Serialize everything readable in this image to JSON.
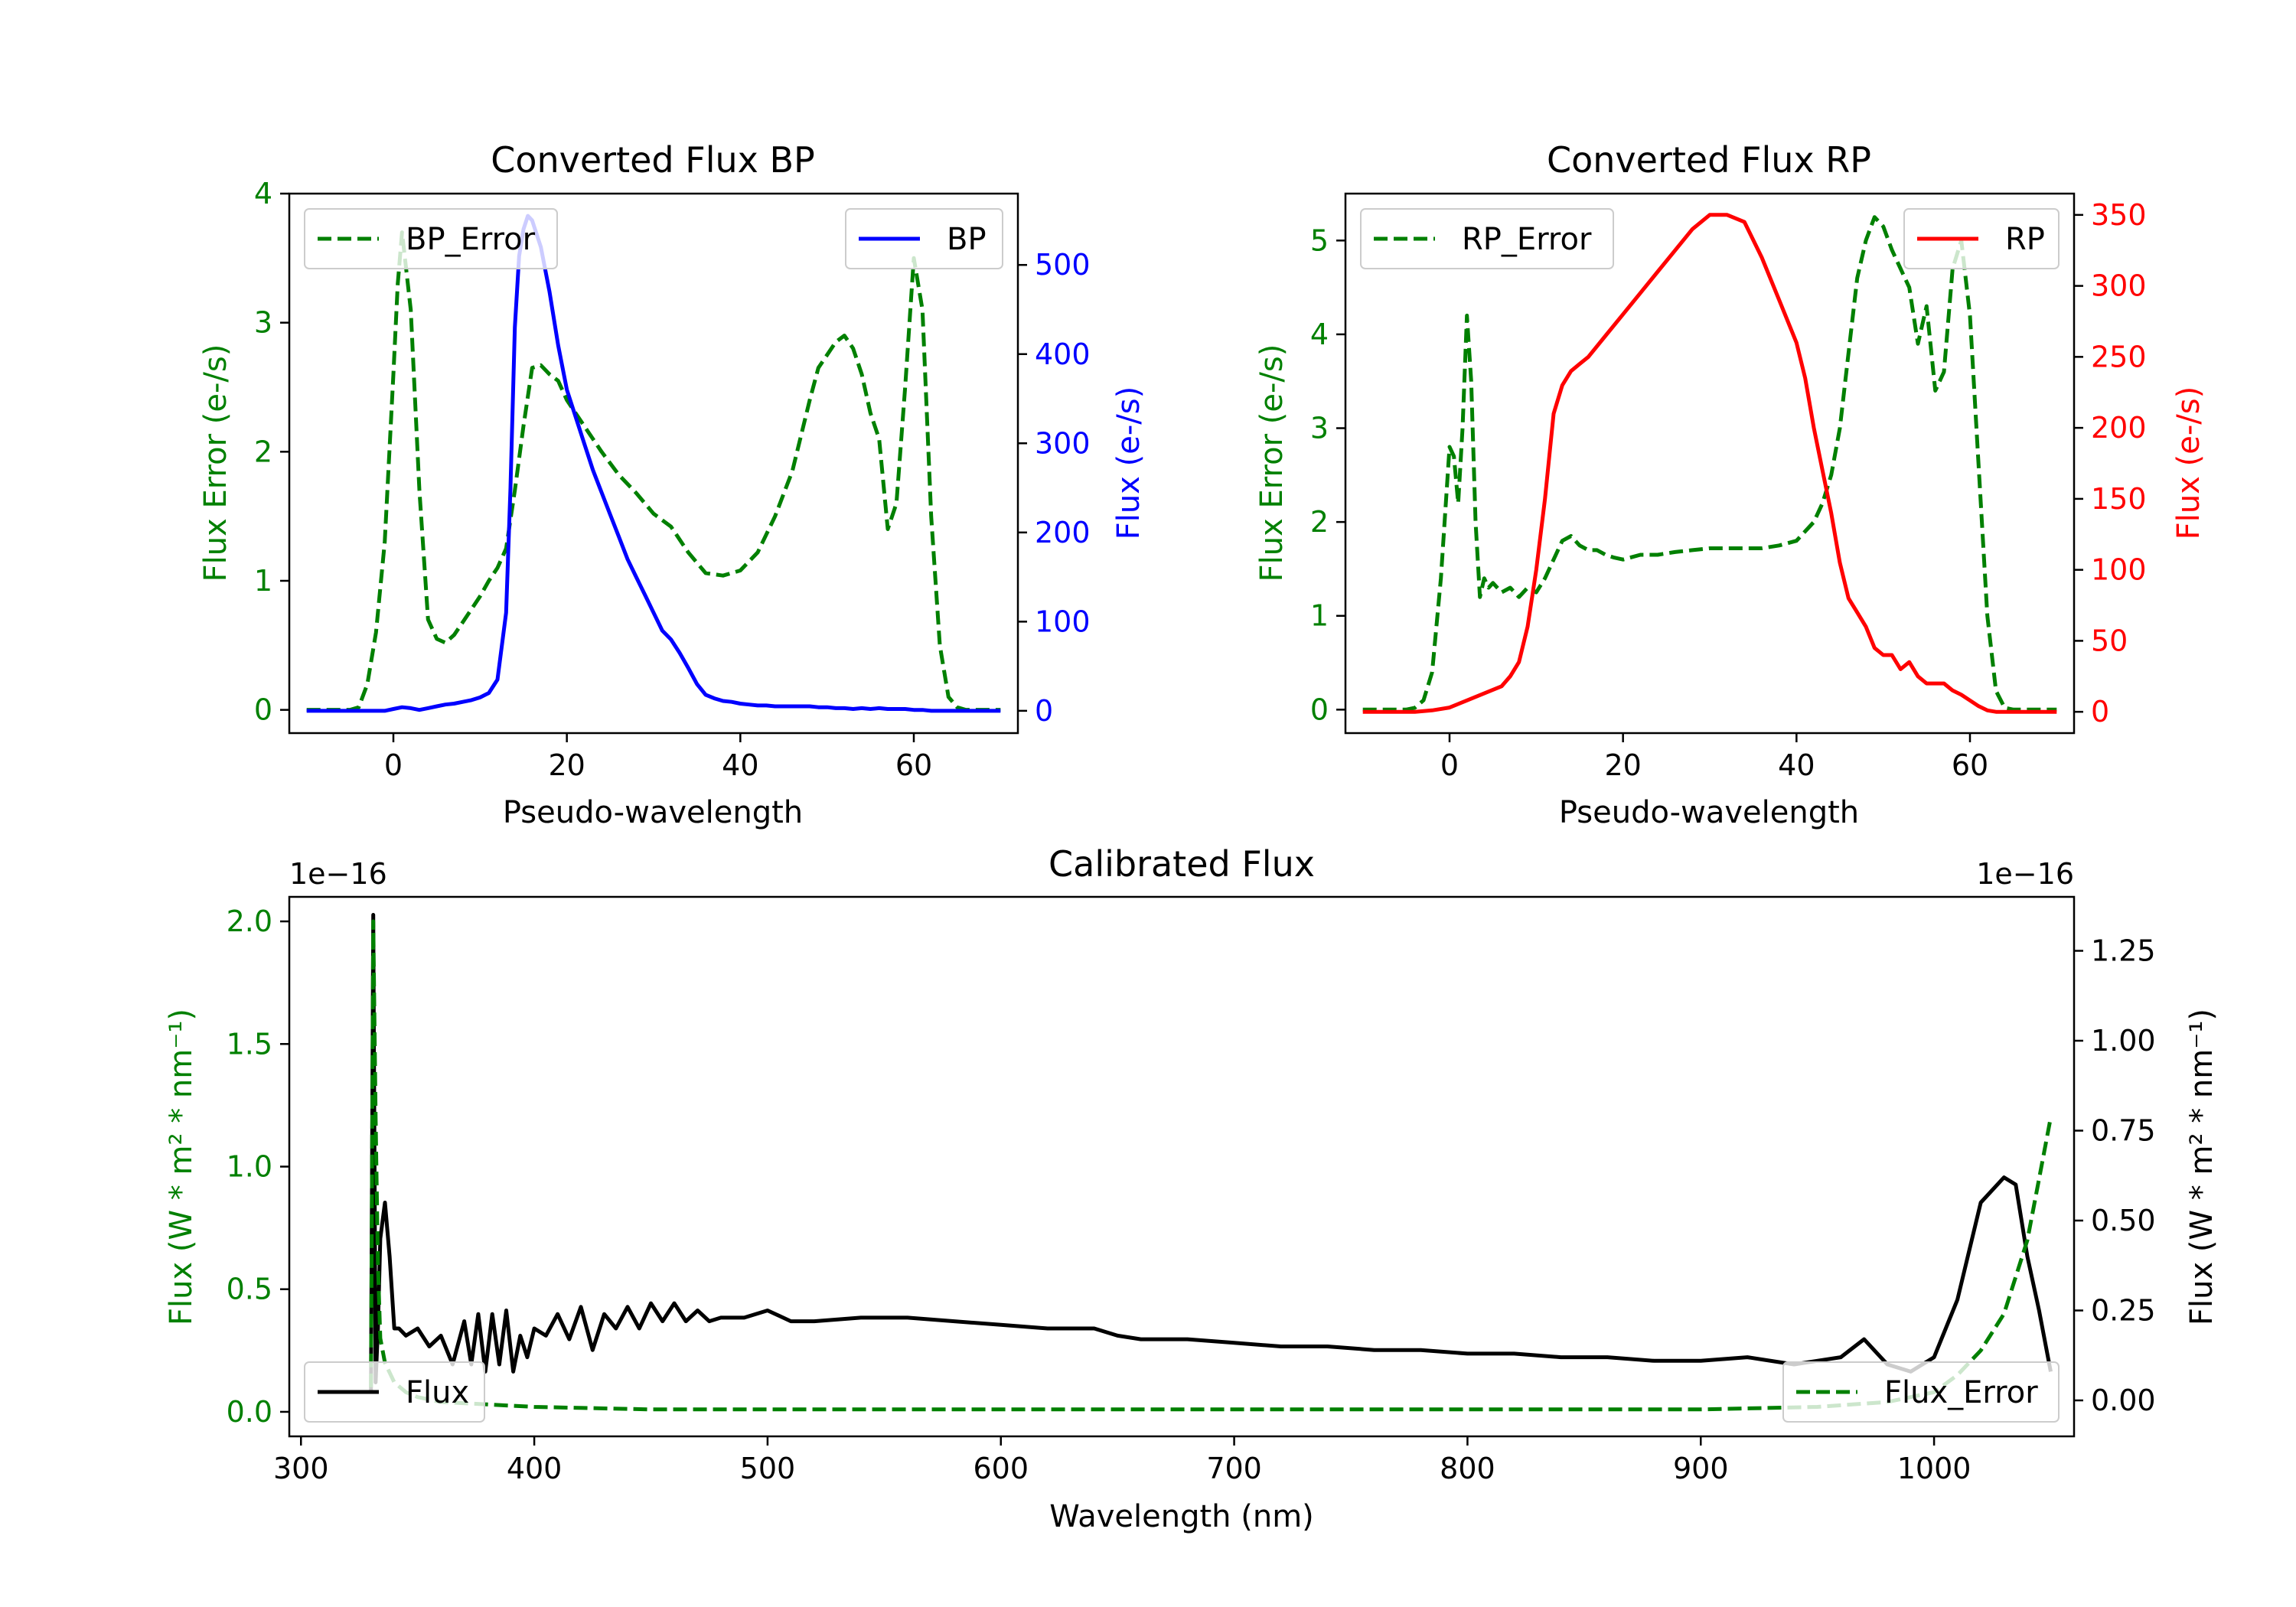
{
  "colors": {
    "error": "#008000",
    "bp": "#0000ff",
    "rp": "#ff0000",
    "flux": "#000000",
    "axis": "#000000"
  },
  "chart_data": [
    {
      "id": "bp",
      "type": "line",
      "title": "Converted Flux BP",
      "xlabel": "Pseudo-wavelength",
      "ylabel_left": "Flux Error (e-/s)",
      "ylabel_right": "Flux (e-/s)",
      "xlim": [
        -12,
        72
      ],
      "ylim_left": [
        -0.18,
        4.0
      ],
      "ylim_right": [
        -25,
        580
      ],
      "xticks": [
        0,
        20,
        40,
        60
      ],
      "yticks_left": [
        0,
        1,
        2,
        3,
        4
      ],
      "yticks_right": [
        0,
        100,
        200,
        300,
        400,
        500
      ],
      "legend_left": {
        "label": "BP_Error",
        "placement": "upper left"
      },
      "legend_right": {
        "label": "BP",
        "placement": "upper right"
      },
      "series": [
        {
          "name": "BP_Error",
          "axis": "left",
          "color": "#008000",
          "style": "dashed",
          "x": [
            -10,
            -5,
            -4,
            -3,
            -2,
            -1,
            0,
            0.5,
            1,
            2,
            3,
            4,
            5,
            6,
            7,
            8,
            9,
            10,
            11,
            12,
            13,
            14,
            15,
            16,
            17,
            18,
            19,
            20,
            22,
            24,
            26,
            28,
            30,
            32,
            34,
            36,
            38,
            40,
            42,
            44,
            46,
            48,
            49,
            50,
            51,
            52,
            53,
            54,
            55,
            56,
            57,
            58,
            59,
            60,
            61,
            62,
            63,
            64,
            65,
            66,
            70
          ],
          "y": [
            0,
            0,
            0.02,
            0.2,
            0.6,
            1.3,
            2.6,
            3.3,
            3.7,
            3.1,
            1.7,
            0.7,
            0.55,
            0.52,
            0.58,
            0.68,
            0.78,
            0.88,
            1.0,
            1.1,
            1.25,
            1.7,
            2.2,
            2.65,
            2.67,
            2.6,
            2.55,
            2.4,
            2.2,
            2.0,
            1.82,
            1.68,
            1.52,
            1.42,
            1.22,
            1.06,
            1.04,
            1.08,
            1.22,
            1.5,
            1.85,
            2.4,
            2.65,
            2.75,
            2.85,
            2.9,
            2.8,
            2.6,
            2.3,
            2.1,
            1.4,
            1.6,
            2.5,
            3.5,
            3.1,
            1.5,
            0.5,
            0.1,
            0.02,
            0,
            0
          ]
        },
        {
          "name": "BP",
          "axis": "right",
          "color": "#0000ff",
          "style": "solid",
          "x": [
            -10,
            -5,
            -4,
            -3,
            -2,
            -1,
            0,
            1,
            2,
            3,
            4,
            5,
            6,
            7,
            8,
            9,
            10,
            11,
            12,
            13,
            13.5,
            14,
            14.5,
            15,
            15.5,
            16,
            17,
            18,
            19,
            20,
            21,
            22,
            23,
            24,
            25,
            26,
            27,
            28,
            29,
            30,
            31,
            32,
            33,
            34,
            35,
            36,
            37,
            38,
            39,
            40,
            41,
            42,
            43,
            44,
            45,
            46,
            47,
            48,
            49,
            50,
            51,
            52,
            53,
            54,
            55,
            56,
            57,
            58,
            59,
            60,
            61,
            62,
            63,
            64,
            65,
            66,
            70
          ],
          "y": [
            0,
            0,
            0,
            0,
            0,
            0,
            2,
            4,
            3,
            1,
            3,
            5,
            7,
            8,
            10,
            12,
            15,
            20,
            35,
            110,
            250,
            430,
            510,
            540,
            555,
            550,
            520,
            470,
            410,
            360,
            330,
            300,
            270,
            245,
            220,
            195,
            170,
            150,
            130,
            110,
            90,
            80,
            65,
            48,
            30,
            18,
            14,
            11,
            10,
            8,
            7,
            6,
            6,
            5,
            5,
            5,
            5,
            5,
            4,
            4,
            3,
            3,
            2,
            3,
            2,
            3,
            2,
            2,
            2,
            1,
            1,
            0,
            0,
            0,
            0,
            0,
            0
          ]
        }
      ]
    },
    {
      "id": "rp",
      "type": "line",
      "title": "Converted Flux RP",
      "xlabel": "Pseudo-wavelength",
      "ylabel_left": "Flux Error (e-/s)",
      "ylabel_right": "Flux (e-/s)",
      "xlim": [
        -12,
        72
      ],
      "ylim_left": [
        -0.25,
        5.5
      ],
      "ylim_right": [
        -15,
        365
      ],
      "xticks": [
        0,
        20,
        40,
        60
      ],
      "yticks_left": [
        0,
        1,
        2,
        3,
        4,
        5
      ],
      "yticks_right": [
        0,
        50,
        100,
        150,
        200,
        250,
        300,
        350
      ],
      "legend_left": {
        "label": "RP_Error",
        "placement": "upper left"
      },
      "legend_right": {
        "label": "RP",
        "placement": "upper right"
      },
      "series": [
        {
          "name": "RP_Error",
          "axis": "left",
          "color": "#008000",
          "style": "dashed",
          "x": [
            -10,
            -5,
            -4,
            -3,
            -2,
            -1,
            0,
            0.5,
            1,
            1.5,
            2,
            2.5,
            3,
            3.5,
            4,
            4.5,
            5,
            6,
            7,
            8,
            9,
            10,
            11,
            12,
            13,
            14,
            15,
            16,
            17,
            18,
            19,
            20,
            22,
            24,
            26,
            28,
            30,
            32,
            34,
            36,
            38,
            40,
            42,
            43,
            44,
            45,
            46,
            47,
            48,
            49,
            50,
            51,
            52,
            53,
            54,
            55,
            56,
            57,
            58,
            59,
            60,
            61,
            62,
            63,
            64,
            65,
            66,
            70
          ],
          "y": [
            0,
            0,
            0.02,
            0.1,
            0.4,
            1.4,
            2.8,
            2.7,
            2.2,
            3.0,
            4.2,
            3.5,
            2.0,
            1.2,
            1.4,
            1.3,
            1.35,
            1.25,
            1.3,
            1.2,
            1.3,
            1.25,
            1.4,
            1.6,
            1.8,
            1.85,
            1.75,
            1.7,
            1.7,
            1.65,
            1.62,
            1.6,
            1.65,
            1.65,
            1.68,
            1.7,
            1.72,
            1.72,
            1.72,
            1.72,
            1.75,
            1.8,
            2.0,
            2.2,
            2.5,
            3.0,
            3.8,
            4.6,
            5.0,
            5.25,
            5.15,
            4.9,
            4.7,
            4.5,
            3.9,
            4.3,
            3.4,
            3.6,
            4.7,
            5.0,
            4.2,
            2.6,
            1.0,
            0.2,
            0.02,
            0,
            0,
            0
          ]
        },
        {
          "name": "RP",
          "axis": "right",
          "color": "#ff0000",
          "style": "solid",
          "x": [
            -10,
            -5,
            -4,
            -2,
            0,
            2,
            4,
            6,
            7,
            8,
            9,
            10,
            11,
            12,
            13,
            14,
            15,
            16,
            18,
            20,
            22,
            24,
            26,
            28,
            30,
            32,
            34,
            36,
            38,
            40,
            41,
            42,
            43,
            44,
            45,
            46,
            47,
            48,
            49,
            50,
            51,
            52,
            53,
            54,
            55,
            56,
            57,
            58,
            59,
            60,
            61,
            62,
            63,
            64,
            66,
            70
          ],
          "y": [
            0,
            0,
            0,
            1,
            3,
            8,
            13,
            18,
            25,
            35,
            60,
            100,
            150,
            210,
            230,
            240,
            245,
            250,
            265,
            280,
            295,
            310,
            325,
            340,
            350,
            350,
            345,
            320,
            290,
            260,
            235,
            200,
            170,
            140,
            105,
            80,
            70,
            60,
            45,
            40,
            40,
            30,
            35,
            25,
            20,
            20,
            20,
            15,
            12,
            8,
            4,
            1,
            0,
            0,
            0,
            0
          ]
        }
      ]
    },
    {
      "id": "calibrated",
      "type": "line",
      "title": "Calibrated Flux",
      "xlabel": "Wavelength (nm)",
      "ylabel_left": "Flux (W * m² * nm⁻¹)",
      "ylabel_right": "Flux (W * m² * nm⁻¹)",
      "offset_left": "1e−16",
      "offset_right": "1e−16",
      "xlim": [
        295,
        1060
      ],
      "ylim_left": [
        -0.1,
        2.1
      ],
      "ylim_right": [
        -0.1,
        1.4
      ],
      "xticks": [
        300,
        400,
        500,
        600,
        700,
        800,
        900,
        1000
      ],
      "yticks_left": [
        0.0,
        0.5,
        1.0,
        1.5,
        2.0
      ],
      "yticks_left_labels": [
        "0.0",
        "0.5",
        "1.0",
        "1.5",
        "2.0"
      ],
      "yticks_right": [
        0.0,
        0.25,
        0.5,
        0.75,
        1.0,
        1.25
      ],
      "yticks_right_labels": [
        "0.00",
        "0.25",
        "0.50",
        "0.75",
        "1.00",
        "1.25"
      ],
      "legend_left": {
        "label": "Flux",
        "placement": "lower left"
      },
      "legend_right": {
        "label": "Flux_Error",
        "placement": "lower right"
      },
      "series": [
        {
          "name": "Flux",
          "axis": "right",
          "color": "#000000",
          "style": "solid",
          "x": [
            330,
            331,
            332,
            333,
            334,
            336,
            338,
            340,
            342,
            345,
            350,
            355,
            360,
            365,
            370,
            373,
            376,
            379,
            382,
            385,
            388,
            391,
            394,
            397,
            400,
            405,
            410,
            415,
            420,
            425,
            430,
            435,
            440,
            445,
            450,
            455,
            460,
            465,
            470,
            475,
            480,
            490,
            500,
            510,
            520,
            540,
            560,
            580,
            600,
            620,
            640,
            650,
            660,
            680,
            700,
            720,
            740,
            760,
            780,
            800,
            820,
            840,
            860,
            880,
            900,
            920,
            940,
            960,
            970,
            980,
            990,
            1000,
            1010,
            1020,
            1030,
            1035,
            1040,
            1045,
            1050
          ],
          "y": [
            0.02,
            1.35,
            0.05,
            0.2,
            0.45,
            0.55,
            0.4,
            0.2,
            0.2,
            0.18,
            0.2,
            0.15,
            0.18,
            0.1,
            0.22,
            0.1,
            0.24,
            0.08,
            0.24,
            0.1,
            0.25,
            0.08,
            0.18,
            0.12,
            0.2,
            0.18,
            0.24,
            0.17,
            0.26,
            0.14,
            0.24,
            0.2,
            0.26,
            0.2,
            0.27,
            0.22,
            0.27,
            0.22,
            0.25,
            0.22,
            0.23,
            0.23,
            0.25,
            0.22,
            0.22,
            0.23,
            0.23,
            0.22,
            0.21,
            0.2,
            0.2,
            0.18,
            0.17,
            0.17,
            0.16,
            0.15,
            0.15,
            0.14,
            0.14,
            0.13,
            0.13,
            0.12,
            0.12,
            0.11,
            0.11,
            0.12,
            0.1,
            0.12,
            0.17,
            0.1,
            0.08,
            0.12,
            0.28,
            0.55,
            0.62,
            0.6,
            0.4,
            0.25,
            0.08
          ]
        },
        {
          "name": "Flux_Error",
          "axis": "left",
          "color": "#008000",
          "style": "dashed",
          "x": [
            330,
            331,
            332,
            333,
            334,
            336,
            340,
            345,
            350,
            360,
            380,
            400,
            450,
            500,
            600,
            700,
            800,
            900,
            950,
            980,
            1000,
            1010,
            1020,
            1030,
            1040,
            1045,
            1050
          ],
          "y": [
            0.1,
            2.0,
            1.2,
            0.6,
            0.3,
            0.2,
            0.12,
            0.08,
            0.06,
            0.04,
            0.03,
            0.02,
            0.01,
            0.01,
            0.01,
            0.01,
            0.01,
            0.01,
            0.02,
            0.04,
            0.08,
            0.15,
            0.25,
            0.4,
            0.7,
            0.95,
            1.2
          ]
        }
      ]
    }
  ]
}
